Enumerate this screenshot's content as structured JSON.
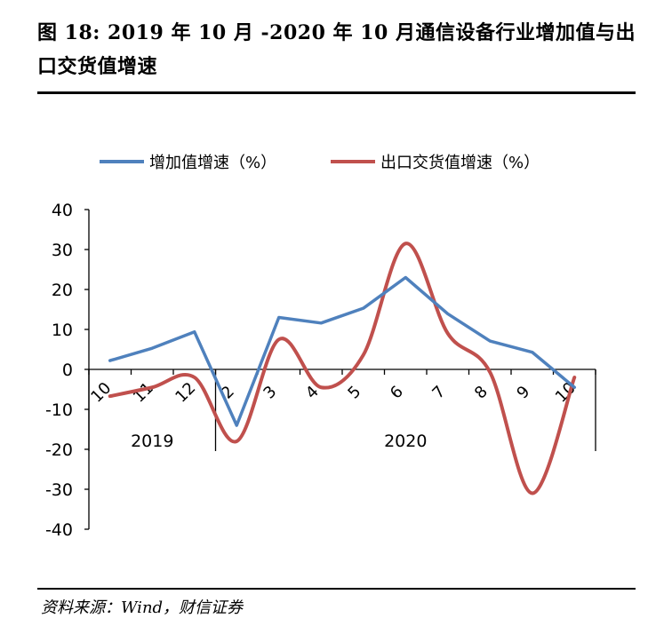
{
  "header": {
    "title": "图 18: 2019 年 10 月 -2020 年 10 月通信设备行业增加值与出口交货值增速"
  },
  "footer": {
    "source": "资料来源：Wind，财信证券"
  },
  "colors": {
    "series1": "#4F81BD",
    "series2": "#C0504D",
    "axis": "#000000"
  },
  "chart_data": {
    "type": "line",
    "title": "",
    "categories": [
      "10",
      "11",
      "12",
      "2",
      "3",
      "4",
      "5",
      "6",
      "7",
      "8",
      "9",
      "10"
    ],
    "groups": [
      {
        "label": "2019",
        "from": 0,
        "to": 2
      },
      {
        "label": "2020",
        "from": 3,
        "to": 11
      }
    ],
    "series": [
      {
        "name": "增加值增速（%）",
        "color": "#4F81BD",
        "smooth": false,
        "values": [
          2.2,
          5.3,
          9.4,
          -14.0,
          13.0,
          11.6,
          15.3,
          23.0,
          13.9,
          7.1,
          4.3,
          -4.5
        ]
      },
      {
        "name": "出口交货值增速（%）",
        "color": "#C0504D",
        "smooth": true,
        "values": [
          -6.7,
          -4.5,
          -2.0,
          -18.0,
          7.5,
          -4.5,
          3.6,
          31.5,
          9.0,
          -0.7,
          -31.0,
          -2.0
        ]
      }
    ],
    "xlabel": "",
    "ylabel": "",
    "ylim": [
      -40,
      40
    ],
    "yticks": [
      40,
      30,
      20,
      10,
      0,
      -10,
      -20,
      -30,
      -40
    ],
    "legend": "top-center",
    "grid": false
  }
}
